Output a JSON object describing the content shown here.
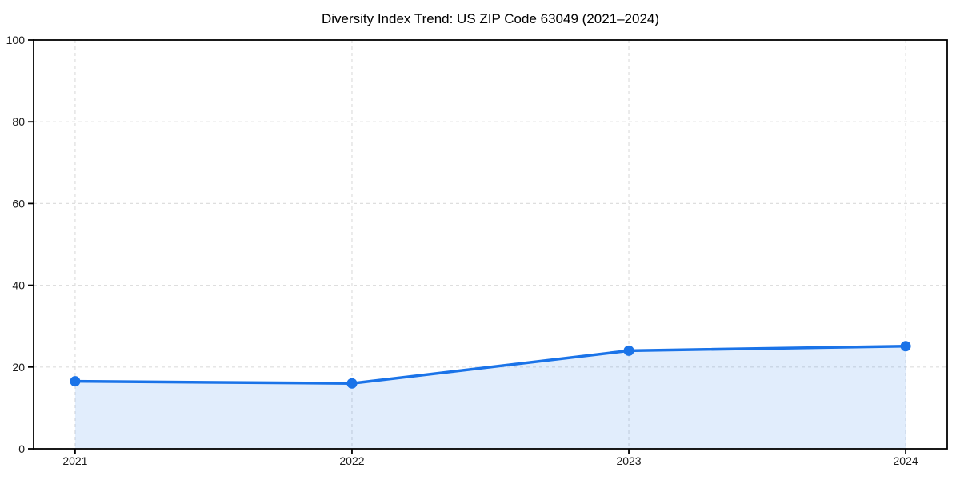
{
  "chart_data": {
    "type": "area",
    "title": "Diversity Index Trend: US ZIP Code 63049 (2021–2024)",
    "x": [
      2021,
      2022,
      2023,
      2024
    ],
    "xticklabels": [
      "2021",
      "2022",
      "2023",
      "2024"
    ],
    "values": [
      16.5,
      16.0,
      24.0,
      25.1
    ],
    "xlabel": "",
    "ylabel": "",
    "ylim": [
      0,
      100
    ],
    "yticks": [
      0,
      20,
      40,
      60,
      80,
      100
    ],
    "ytick_labels": [
      "0",
      "20",
      "40",
      "60",
      "80",
      "100"
    ],
    "grid": true,
    "grid_style": "dashed",
    "legend_position": "none",
    "marker": "circle",
    "colors": {
      "line": "#1a73e8",
      "fill": "rgba(26,115,232,0.13)",
      "grid": "#dedede",
      "axis": "#000000",
      "text": "#1a1a1a",
      "background": "#ffffff"
    }
  }
}
